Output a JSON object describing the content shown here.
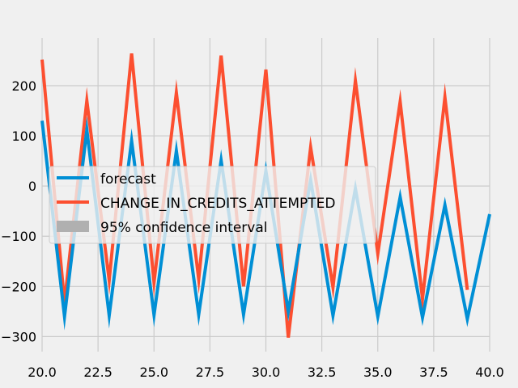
{
  "chart_data": {
    "type": "line",
    "xlim": [
      20.0,
      40.0
    ],
    "ylim": [
      -330,
      295
    ],
    "x_ticks": [
      "20.0",
      "22.5",
      "25.0",
      "27.5",
      "30.0",
      "32.5",
      "35.0",
      "37.5",
      "40.0"
    ],
    "y_ticks": [
      "−300",
      "−200",
      "−100",
      "0",
      "100",
      "200"
    ],
    "grid": true,
    "legend_position": "center-left",
    "legend": {
      "forecast": "forecast",
      "actual": "CHANGE_IN_CREDITS_ATTEMPTED",
      "ci": "95% confidence interval"
    },
    "colors": {
      "forecast": "#008fd5",
      "actual": "#fc4f30",
      "ci": "#b0b0b0",
      "background": "#f0f0f0",
      "grid": "#cbcbcb"
    },
    "series": [
      {
        "name": "CHANGE_IN_CREDITS_ATTEMPTED",
        "x": [
          20,
          21,
          22,
          23,
          24,
          25,
          26,
          27,
          28,
          29,
          30,
          31,
          32,
          33,
          34,
          35,
          36,
          37,
          38,
          39
        ],
        "values": [
          252,
          -232,
          170,
          -188,
          264,
          -192,
          186,
          -186,
          260,
          -200,
          232,
          -302,
          77,
          -202,
          210,
          -135,
          168,
          -225,
          177,
          -207
        ]
      },
      {
        "name": "forecast",
        "x": [
          20,
          21,
          22,
          23,
          24,
          25,
          26,
          27,
          28,
          29,
          30,
          31,
          32,
          33,
          34,
          35,
          36,
          37,
          38,
          39,
          40
        ],
        "values": [
          130,
          -260,
          112,
          -258,
          90,
          -257,
          70,
          -256,
          51,
          -256,
          30,
          -250,
          12,
          -258,
          -5,
          -260,
          -22,
          -262,
          -38,
          -265,
          -56
        ]
      }
    ]
  }
}
